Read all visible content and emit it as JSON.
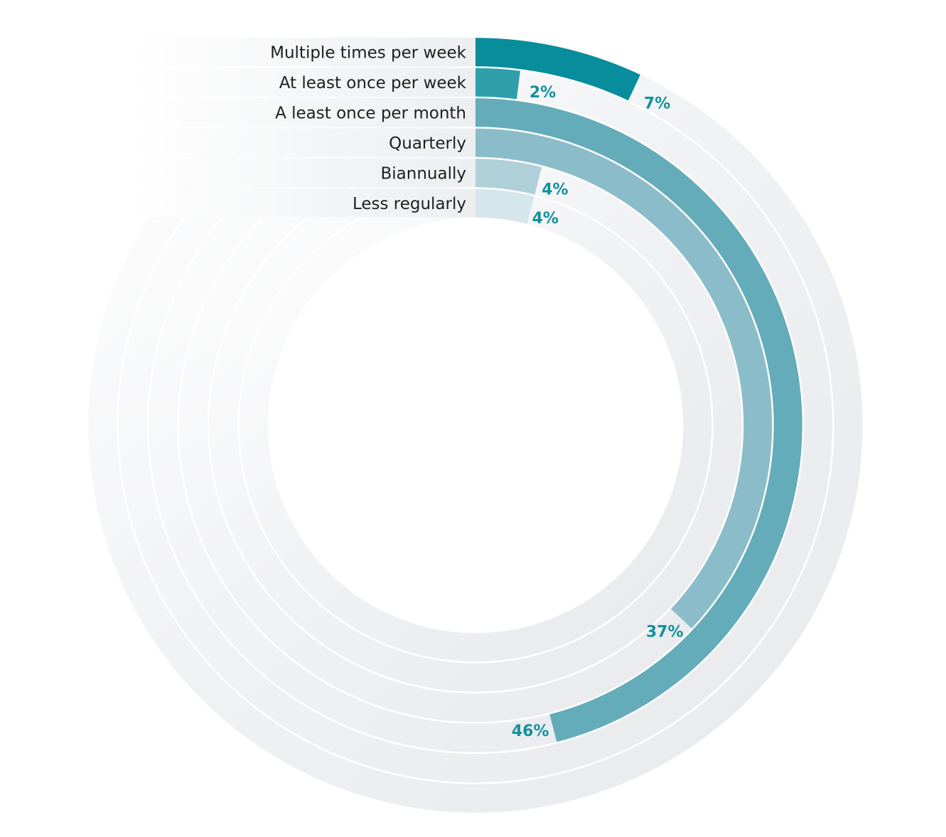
{
  "chart_data": {
    "type": "radial-bar",
    "title": "",
    "categories": [
      "Multiple times per week",
      "At least once per week",
      "A least once per month",
      "Quarterly",
      "Biannually",
      "Less regularly"
    ],
    "values": [
      7,
      2,
      46,
      37,
      4,
      4
    ],
    "value_labels": [
      "7%",
      "2%",
      "46%",
      "37%",
      "4%",
      "4%"
    ],
    "max": 100,
    "colors": [
      "#078d9c",
      "#2e9fab",
      "#64acba",
      "#8abdc9",
      "#b0d0d9",
      "#d5e6ec"
    ],
    "track_color": "#e9ebee",
    "grid": false,
    "legend": "none"
  }
}
